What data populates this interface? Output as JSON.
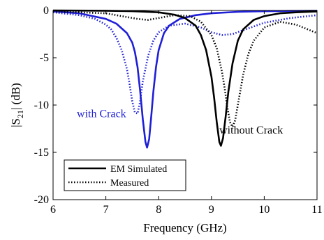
{
  "chart_data": {
    "type": "line",
    "xlabel": "Frequency (GHz)",
    "ylabel_main": "|S",
    "ylabel_sub": "21",
    "ylabel_tail": "| (dB)",
    "xlim": [
      6,
      11
    ],
    "ylim": [
      -20,
      0
    ],
    "xticks": [
      6,
      7,
      8,
      9,
      10,
      11
    ],
    "yticks": [
      0,
      -5,
      -10,
      -15,
      -20
    ],
    "xtick_labels": [
      "6",
      "7",
      "8",
      "9",
      "10",
      "11"
    ],
    "ytick_labels": [
      "0",
      "-5",
      "-10",
      "-15",
      "-20"
    ],
    "grid": false,
    "legend_position": "bottom-left",
    "legend": [
      {
        "label": "EM Simulated",
        "style": "solid"
      },
      {
        "label": "Measured",
        "style": "dotted"
      }
    ],
    "annotations": [
      {
        "text": "with Crack",
        "color": "#1f1fd6",
        "x": 6.45,
        "y": -11.3
      },
      {
        "text": "without Crack",
        "color": "#000000",
        "x": 9.15,
        "y": -13.0
      }
    ],
    "series": [
      {
        "color": "#1f1fd6",
        "style": "solid",
        "x": [
          6,
          6.5,
          7.0,
          7.2,
          7.4,
          7.5,
          7.55,
          7.6,
          7.65,
          7.7,
          7.75,
          7.78,
          7.82,
          7.86,
          7.9,
          7.95,
          8.0,
          8.1,
          8.2,
          8.4,
          8.7,
          9.0,
          9.5,
          10.0,
          10.5,
          11.0
        ],
        "y": [
          -0.1,
          -0.3,
          -0.9,
          -1.4,
          -2.4,
          -3.4,
          -4.4,
          -6.0,
          -8.5,
          -11.5,
          -13.9,
          -14.5,
          -13.6,
          -11.2,
          -8.6,
          -6.0,
          -4.2,
          -2.4,
          -1.6,
          -0.9,
          -0.5,
          -0.3,
          -0.15,
          -0.08,
          -0.05,
          -0.03
        ]
      },
      {
        "color": "#1f1fd6",
        "style": "dotted",
        "x": [
          6,
          6.5,
          6.8,
          7.0,
          7.1,
          7.2,
          7.3,
          7.4,
          7.45,
          7.5,
          7.55,
          7.6,
          7.65,
          7.7,
          7.8,
          7.9,
          8.0,
          8.2,
          8.5,
          8.8,
          9.0,
          9.2,
          9.4,
          9.7,
          10.0,
          10.5,
          11.0
        ],
        "y": [
          -0.2,
          -0.5,
          -0.9,
          -1.5,
          -2.0,
          -2.9,
          -4.2,
          -6.2,
          -7.8,
          -9.6,
          -10.8,
          -10.9,
          -9.6,
          -7.5,
          -4.8,
          -3.2,
          -2.3,
          -1.6,
          -1.4,
          -1.8,
          -2.3,
          -2.6,
          -2.5,
          -1.9,
          -1.3,
          -0.8,
          -0.5
        ]
      },
      {
        "color": "#000000",
        "style": "solid",
        "x": [
          6,
          7.0,
          7.5,
          8.0,
          8.3,
          8.5,
          8.7,
          8.8,
          8.9,
          9.0,
          9.05,
          9.1,
          9.15,
          9.18,
          9.22,
          9.27,
          9.32,
          9.4,
          9.5,
          9.6,
          9.8,
          10.0,
          10.3,
          10.6,
          11.0
        ],
        "y": [
          0,
          -0.03,
          -0.08,
          -0.2,
          -0.45,
          -0.8,
          -1.6,
          -2.6,
          -4.2,
          -7.0,
          -9.2,
          -11.8,
          -13.9,
          -14.3,
          -13.5,
          -11.2,
          -8.6,
          -5.6,
          -3.2,
          -2.0,
          -1.0,
          -0.6,
          -0.3,
          -0.2,
          -0.1
        ]
      },
      {
        "color": "#000000",
        "style": "dotted",
        "x": [
          6,
          7.0,
          7.3,
          7.6,
          7.8,
          8.0,
          8.3,
          8.6,
          8.8,
          9.0,
          9.1,
          9.2,
          9.25,
          9.3,
          9.35,
          9.4,
          9.45,
          9.5,
          9.6,
          9.7,
          9.8,
          10.0,
          10.3,
          10.6,
          11.0
        ],
        "y": [
          -0.1,
          -0.3,
          -0.6,
          -0.9,
          -1.0,
          -0.8,
          -0.5,
          -0.6,
          -1.2,
          -2.6,
          -4.0,
          -6.5,
          -8.2,
          -10.2,
          -11.8,
          -12.3,
          -11.6,
          -10.0,
          -6.8,
          -4.6,
          -3.2,
          -1.8,
          -1.2,
          -1.5,
          -2.4
        ]
      }
    ]
  }
}
